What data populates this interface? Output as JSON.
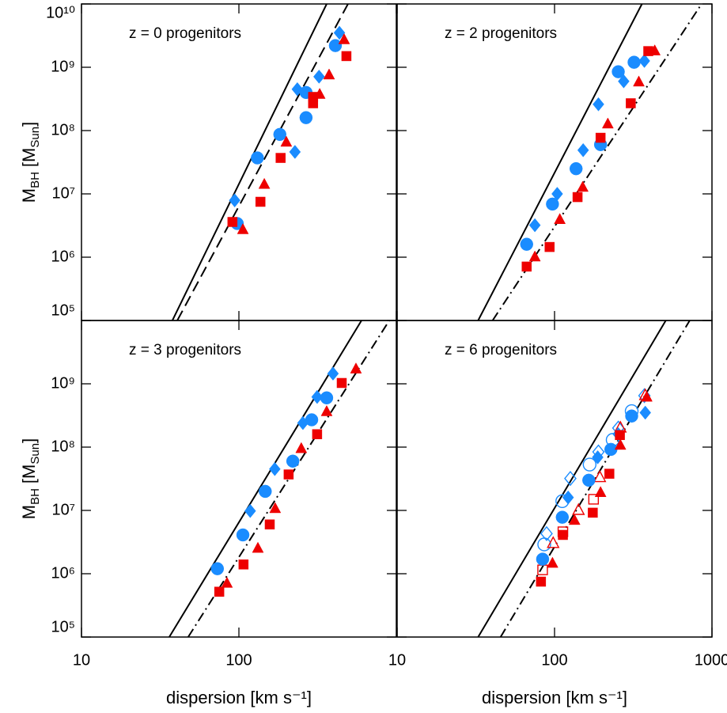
{
  "chart_data": [
    {
      "type": "scatter",
      "annotation": "z = 0 progenitors",
      "xscale": "log",
      "yscale": "log",
      "xlim": [
        10,
        1000
      ],
      "ylim": [
        100000.0,
        10000000000.0
      ],
      "xticks": [
        10,
        100,
        1000
      ],
      "show_xtick_labels": false,
      "yticks": [
        {
          "value": 100000.0,
          "label": "10⁵"
        },
        {
          "value": 1000000.0,
          "label": "10⁶"
        },
        {
          "value": 10000000.0,
          "label": "10⁷"
        },
        {
          "value": 100000000.0,
          "label": "10⁸"
        },
        {
          "value": 1000000000.0,
          "label": "10⁹"
        },
        {
          "value": 10000000000.0,
          "label": "10¹⁰"
        }
      ],
      "show_ytick_labels": true,
      "ylabel": {
        "symbol": "M",
        "symbol_sub": "BH",
        "unit": "[M",
        "unit_sub": "Sun",
        "unit_close": "]"
      },
      "lines": [
        {
          "style": "solid",
          "x": [
            37.8,
            361
          ],
          "y": [
            100000.0,
            10000000000.0
          ]
        },
        {
          "style": "dashed",
          "x": [
            40.6,
            493
          ],
          "y": [
            100000.0,
            10000000000.0
          ]
        }
      ],
      "series": [
        {
          "marker": "circle",
          "filled": true,
          "color": "#1a8cff",
          "x": [
            97.6,
            131,
            182,
            267,
            267,
            410
          ],
          "values": [
            3400000.0,
            37000000.0,
            87000000.0,
            160000000.0,
            400000000.0,
            2200000000.0
          ]
        },
        {
          "marker": "diamond",
          "filled": true,
          "color": "#1a8cff",
          "x": [
            94,
            227,
            235,
            323,
            435
          ],
          "values": [
            7900000.0,
            46000000.0,
            450000000.0,
            710000000.0,
            3500000000.0
          ]
        },
        {
          "marker": "square",
          "filled": true,
          "color": "#ee0000",
          "x": [
            91,
            137,
            184,
            296,
            296,
            482
          ],
          "values": [
            3600000.0,
            7500000.0,
            37000000.0,
            270000000.0,
            340000000.0,
            1500000000.0
          ]
        },
        {
          "marker": "triangle",
          "filled": true,
          "color": "#ee0000",
          "x": [
            106,
            145,
            200,
            326,
            374,
            466
          ],
          "values": [
            2700000.0,
            14000000.0,
            65000000.0,
            370000000.0,
            750000000.0,
            2700000000.0
          ]
        }
      ]
    },
    {
      "type": "scatter",
      "annotation": "z = 2 progenitors",
      "xscale": "log",
      "yscale": "log",
      "xlim": [
        10,
        1000
      ],
      "ylim": [
        100000.0,
        10000000000.0
      ],
      "xticks": [
        10,
        100,
        1000
      ],
      "show_xtick_labels": false,
      "yticks": [
        100000,
        1000000,
        10000000,
        100000000,
        1000000000,
        10000000000
      ],
      "show_ytick_labels": false,
      "lines": [
        {
          "style": "solid",
          "x": [
            32.7,
            359
          ],
          "y": [
            100000.0,
            10000000000.0
          ]
        },
        {
          "style": "dashdot",
          "x": [
            40.4,
            859
          ],
          "y": [
            100000.0,
            10000000000.0
          ]
        }
      ],
      "series": [
        {
          "marker": "circle",
          "filled": true,
          "color": "#1a8cff",
          "x": [
            66.5,
            97,
            137,
            196,
            254,
            320
          ],
          "values": [
            1600000.0,
            6900000.0,
            25000000.0,
            60000000.0,
            850000000.0,
            1200000000.0
          ]
        },
        {
          "marker": "diamond",
          "filled": true,
          "color": "#1a8cff",
          "x": [
            75,
            104,
            152,
            190,
            275,
            372
          ],
          "values": [
            3200000.0,
            10000000.0,
            49000000.0,
            260000000.0,
            600000000.0,
            1260000000.0
          ]
        },
        {
          "marker": "square",
          "filled": true,
          "color": "#ee0000",
          "x": [
            66.5,
            93,
            140,
            196,
            305,
            394
          ],
          "values": [
            710000.0,
            1450000.0,
            8900000.0,
            77000000.0,
            270000000.0,
            1800000000.0
          ]
        },
        {
          "marker": "triangle",
          "filled": true,
          "color": "#ee0000",
          "x": [
            75,
            108,
            151,
            218,
            343,
            433
          ],
          "values": [
            1000000.0,
            3900000.0,
            12600000.0,
            126000000.0,
            580000000.0,
            1800000000.0
          ]
        }
      ]
    },
    {
      "type": "scatter",
      "annotation": "z = 3 progenitors",
      "xscale": "log",
      "yscale": "log",
      "xlim": [
        10,
        1000
      ],
      "ylim": [
        100000.0,
        10000000000.0
      ],
      "xticks": [
        10,
        100
      ],
      "show_xtick_labels": true,
      "yticks": [
        {
          "value": 100000.0,
          "label": "10⁵"
        },
        {
          "value": 1000000.0,
          "label": "10⁶"
        },
        {
          "value": 10000000.0,
          "label": "10⁷"
        },
        {
          "value": 100000000.0,
          "label": "10⁸"
        },
        {
          "value": 1000000000.0,
          "label": "10⁹"
        }
      ],
      "show_ytick_labels": true,
      "xlabel": "dispersion [km s⁻¹]",
      "ylabel": {
        "symbol": "M",
        "symbol_sub": "BH",
        "unit": "[M",
        "unit_sub": "Sun",
        "unit_close": "]"
      },
      "lines": [
        {
          "style": "solid",
          "x": [
            36.1,
            601
          ],
          "y": [
            100000.0,
            10000000000.0
          ]
        },
        {
          "style": "dashdot",
          "x": [
            47.6,
            902
          ],
          "y": [
            100000.0,
            10000000000.0
          ]
        }
      ],
      "series": [
        {
          "marker": "circle",
          "filled": true,
          "color": "#1a8cff",
          "x": [
            73,
            106,
            147,
            220,
            290,
            361
          ],
          "values": [
            1200000.0,
            4100000.0,
            20000000.0,
            60000000.0,
            270000000.0,
            600000000.0
          ]
        },
        {
          "marker": "diamond",
          "filled": true,
          "color": "#1a8cff",
          "x": [
            118,
            169,
            255,
            314,
            396
          ],
          "values": [
            9800000.0,
            45000000.0,
            240000000.0,
            620000000.0,
            1450000000.0
          ]
        },
        {
          "marker": "square",
          "filled": true,
          "color": "#ee0000",
          "x": [
            75,
            107,
            157,
            207,
            314,
            450
          ],
          "values": [
            520000.0,
            1400000.0,
            6000000.0,
            37000000.0,
            160000000.0,
            1030000000.0
          ]
        },
        {
          "marker": "triangle",
          "filled": true,
          "color": "#ee0000",
          "x": [
            84,
            132,
            170,
            249,
            361,
            554
          ],
          "values": [
            700000.0,
            2500000.0,
            10600000.0,
            94000000.0,
            360000000.0,
            1700000000.0
          ]
        }
      ]
    },
    {
      "type": "scatter",
      "annotation": "z = 6 progenitors",
      "xscale": "log",
      "yscale": "log",
      "xlim": [
        10,
        1000
      ],
      "ylim": [
        100000.0,
        10000000000.0
      ],
      "xticks": [
        10,
        100,
        1000
      ],
      "show_xtick_labels": true,
      "yticks": [
        100000,
        1000000,
        10000000,
        100000000,
        1000000000,
        10000000000
      ],
      "show_ytick_labels": false,
      "xlabel": "dispersion [km s⁻¹]",
      "lines": [
        {
          "style": "solid",
          "x": [
            32.7,
            509
          ],
          "y": [
            100000.0,
            10000000000.0
          ]
        },
        {
          "style": "dashdot",
          "x": [
            45.4,
            722
          ],
          "y": [
            100000.0,
            10000000000.0
          ]
        }
      ],
      "series": [
        {
          "marker": "circle",
          "filled": false,
          "color": "#1a8cff",
          "x": [
            86,
            112,
            167,
            234,
            309
          ],
          "values": [
            2900000.0,
            14000000.0,
            53000000.0,
            130000000.0,
            370000000.0
          ]
        },
        {
          "marker": "diamond",
          "filled": false,
          "color": "#1a8cff",
          "x": [
            89,
            126,
            190,
            254,
            372
          ],
          "values": [
            4300000.0,
            32000000.0,
            84000000.0,
            200000000.0,
            650000000.0
          ]
        },
        {
          "marker": "square",
          "filled": false,
          "color": "#ee0000",
          "x": [
            84,
            113,
            177
          ],
          "values": [
            1150000.0,
            4600000.0,
            15000000.0
          ]
        },
        {
          "marker": "triangle",
          "filled": false,
          "color": "#ee0000",
          "x": [
            98,
            142,
            194,
            262,
            377
          ],
          "values": [
            3000000.0,
            10000000.0,
            33000000.0,
            200000000.0,
            650000000.0
          ]
        },
        {
          "marker": "circle",
          "filled": true,
          "color": "#1a8cff",
          "x": [
            84,
            112,
            165,
            228,
            309
          ],
          "values": [
            1700000.0,
            7800000.0,
            30000000.0,
            92000000.0,
            310000000.0
          ]
        },
        {
          "marker": "diamond",
          "filled": true,
          "color": "#1a8cff",
          "x": [
            122,
            188,
            254,
            377
          ],
          "values": [
            16000000.0,
            69000000.0,
            160000000.0,
            350000000.0
          ]
        },
        {
          "marker": "square",
          "filled": true,
          "color": "#ee0000",
          "x": [
            82,
            113,
            175,
            223,
            260
          ],
          "values": [
            750000.0,
            4100000.0,
            9200000.0,
            38000000.0,
            155000000.0
          ]
        },
        {
          "marker": "triangle",
          "filled": true,
          "color": "#ee0000",
          "x": [
            97,
            134,
            196,
            262,
            385
          ],
          "values": [
            1450000.0,
            6900000.0,
            19000000.0,
            106000000.0,
            610000000.0
          ]
        }
      ]
    }
  ]
}
